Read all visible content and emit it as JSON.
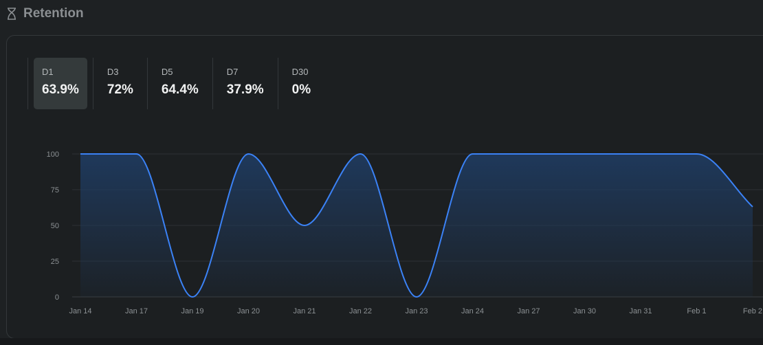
{
  "header": {
    "title": "Retention",
    "icon": "hourglass-icon"
  },
  "tabs": [
    {
      "label": "D1",
      "value": "63.9%",
      "active": true
    },
    {
      "label": "D3",
      "value": "72%"
    },
    {
      "label": "D5",
      "value": "64.4%"
    },
    {
      "label": "D7",
      "value": "37.9%"
    },
    {
      "label": "D30",
      "value": "0%"
    }
  ],
  "colors": {
    "line": "#3b82f6",
    "fill": "#1e3a5f"
  },
  "chart_data": {
    "type": "area",
    "categories": [
      "Jan 14",
      "Jan 17",
      "Jan 19",
      "Jan 20",
      "Jan 21",
      "Jan 22",
      "Jan 23",
      "Jan 24",
      "Jan 27",
      "Jan 30",
      "Jan 31",
      "Feb 1",
      "Feb 2"
    ],
    "values": [
      100,
      100,
      0,
      100,
      50,
      100,
      0,
      100,
      100,
      100,
      100,
      100,
      63
    ],
    "yticks": [
      0,
      25,
      50,
      75,
      100
    ],
    "ylim": [
      0,
      100
    ],
    "grid": true
  }
}
